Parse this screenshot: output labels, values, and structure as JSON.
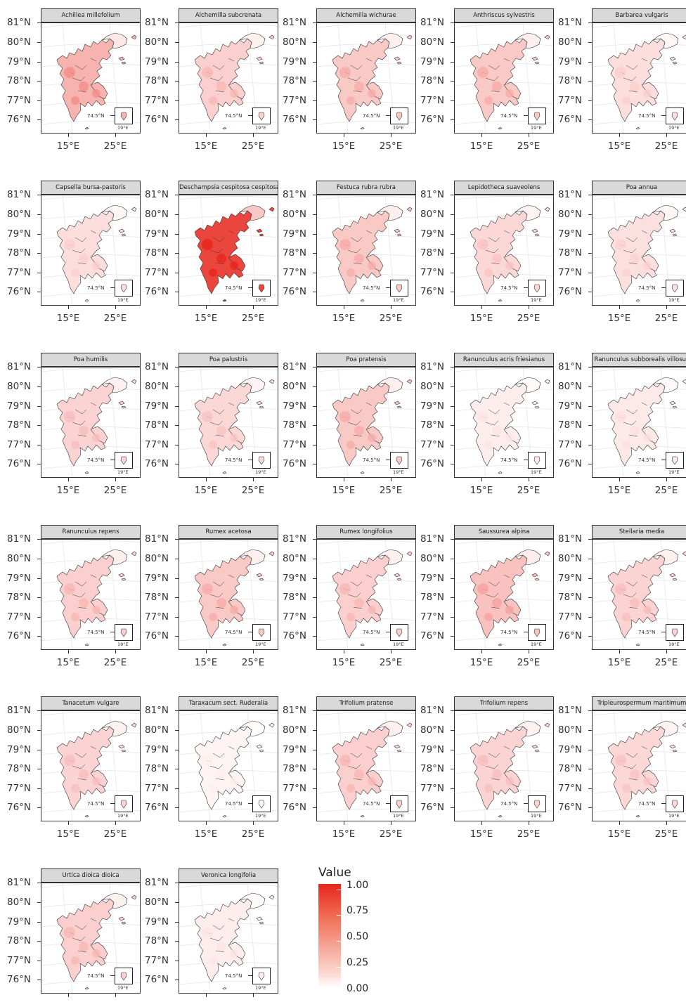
{
  "y_labels": [
    "81°N",
    "80°N",
    "79°N",
    "78°N",
    "77°N",
    "76°N"
  ],
  "x_labels": [
    "15°E",
    "25°E"
  ],
  "inset": {
    "lat_label": "74.5°N",
    "lon_label": "19°E"
  },
  "legend": {
    "title": "Value",
    "ticks": [
      "1.00",
      "0.75",
      "0.50",
      "0.25",
      "0.00"
    ],
    "colors": {
      "high": "#e8251c",
      "low": "#ffffff",
      "outline": "#333333"
    }
  },
  "panels": [
    {
      "title": "Achillea millefolium",
      "intensity": 0.35
    },
    {
      "title": "Alchemilla subcrenata",
      "intensity": 0.22
    },
    {
      "title": "Alchemilla wichurae",
      "intensity": 0.25
    },
    {
      "title": "Anthriscus sylvestris",
      "intensity": 0.25
    },
    {
      "title": "Barbarea vulgaris",
      "intensity": 0.15
    },
    {
      "title": "Capsella bursa-pastoris",
      "intensity": 0.15
    },
    {
      "title": "Deschampsia cespitosa cespitosa",
      "intensity": 0.85
    },
    {
      "title": "Festuca rubra rubra",
      "intensity": 0.25
    },
    {
      "title": "Lepidotheca suaveolens",
      "intensity": 0.18
    },
    {
      "title": "Poa annua",
      "intensity": 0.14
    },
    {
      "title": "Poa humilis",
      "intensity": 0.2
    },
    {
      "title": "Poa palustris",
      "intensity": 0.18
    },
    {
      "title": "Poa pratensis",
      "intensity": 0.25
    },
    {
      "title": "Ranunculus acris friesianus",
      "intensity": 0.08
    },
    {
      "title": "Ranunculus subborealis villosus",
      "intensity": 0.1
    },
    {
      "title": "Ranunculus repens",
      "intensity": 0.22
    },
    {
      "title": "Rumex acetosa",
      "intensity": 0.25
    },
    {
      "title": "Rumex longifolius",
      "intensity": 0.22
    },
    {
      "title": "Saussurea alpina",
      "intensity": 0.28
    },
    {
      "title": "Stellaria media",
      "intensity": 0.2
    },
    {
      "title": "Tanacetum vulgare",
      "intensity": 0.2
    },
    {
      "title": "Taraxacum sect. Ruderalia",
      "intensity": 0.05
    },
    {
      "title": "Trifolium pratense",
      "intensity": 0.22
    },
    {
      "title": "Trifolium repens",
      "intensity": 0.2
    },
    {
      "title": "Tripleurospermum maritimum",
      "intensity": 0.18
    },
    {
      "title": "Urtica dioica dioica",
      "intensity": 0.22
    },
    {
      "title": "Veronica longifolia",
      "intensity": 0.08
    }
  ]
}
